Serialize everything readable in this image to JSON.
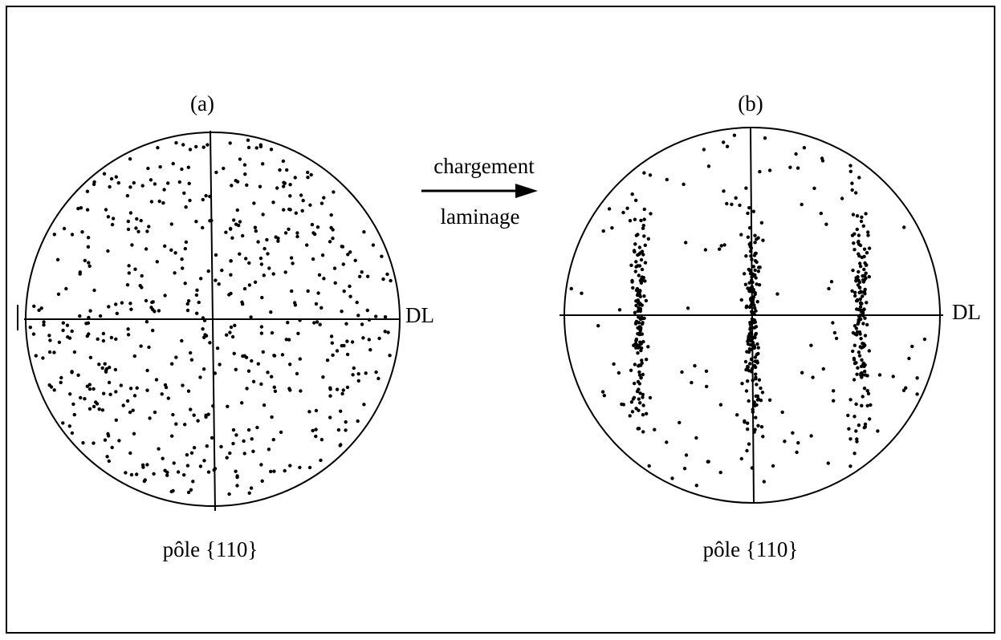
{
  "panels": [
    {
      "label": "(a)",
      "axis_label": "DL",
      "caption": "pôle {110}"
    },
    {
      "label": "(b)",
      "axis_label": "DL",
      "caption": "pôle {110}"
    }
  ],
  "arrow": {
    "above": "chargement",
    "below": "laminage"
  }
}
